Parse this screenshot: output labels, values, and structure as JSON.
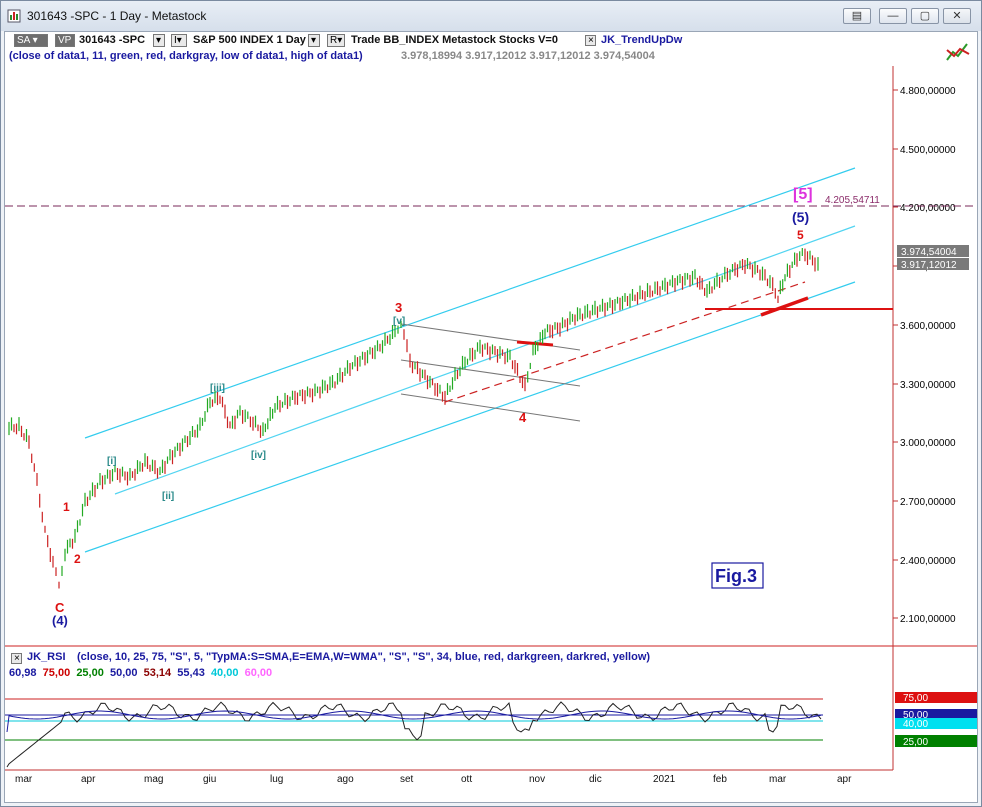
{
  "window": {
    "title": "301643 -SPC - 1 Day - Metastock"
  },
  "toolbar": {
    "sa_label": "SA",
    "vp_label": "VP",
    "symbol": "301643 -SPC",
    "i_label": "I",
    "instrument": "S&P 500 INDEX  1 Day",
    "r_label": "R",
    "info": "Trade  BB_INDEX  Metastock  Stocks  V=0",
    "study": "JK_TrendUpDw",
    "params": "(close of data1,  11,  green,  red,  darkgray,  low of data1,  high of data1)",
    "values": "3.978,18994  3.917,12012  3.917,12012  3.974,54004"
  },
  "price_axis": {
    "labels": [
      "4.800,00000",
      "4.500,00000",
      "4.200,00000",
      "3.900,00000",
      "3.600,00000",
      "3.300,00000",
      "3.000,00000",
      "2.700,00000",
      "2.400,00000",
      "2.100,00000"
    ],
    "tag_top": "3.974,54004",
    "tag_bottom": "3.917,12012",
    "level_label": "4.205,54711"
  },
  "wave_labels": {
    "c": "C",
    "w4": "(4)",
    "one": "1",
    "two": "2",
    "i": "[i]",
    "ii": "[ii]",
    "iii": "[iii]",
    "iv": "[iv]",
    "v": "[v]",
    "three": "3",
    "four": "4",
    "five": "5",
    "paren5": "(5)",
    "bracket5": "[5]"
  },
  "fig_label": "Fig.3",
  "rsi": {
    "name": "JK_RSI",
    "params": "(close,  10,  25,  75,  \"S\",  5,  \"TypMA:S=SMA,E=EMA,W=WMA\",  \"S\",  \"S\",  34,  blue,  red,  darkgreen,  darkred,  yellow)",
    "v1": "60,98",
    "v2": "75,00",
    "v3": "25,00",
    "v4": "50,00",
    "v5": "53,14",
    "v6": "55,43",
    "v7": "40,00",
    "v8": "60,00",
    "tags": [
      "75,00",
      "50,00",
      "40,00",
      "25,00"
    ],
    "colors": {
      "v1": "#1a1aa0",
      "v2": "#cc0000",
      "v3": "#008000",
      "v4": "#1a1aa0",
      "v5": "#8b0000",
      "v6": "#1a1aa0",
      "v7": "#00c8d8",
      "v8": "#ff66ff"
    }
  },
  "time_axis": [
    "mar",
    "apr",
    "mag",
    "giu",
    "lug",
    "ago",
    "set",
    "ott",
    "nov",
    "dic",
    "2021",
    "feb",
    "mar",
    "apr"
  ]
}
